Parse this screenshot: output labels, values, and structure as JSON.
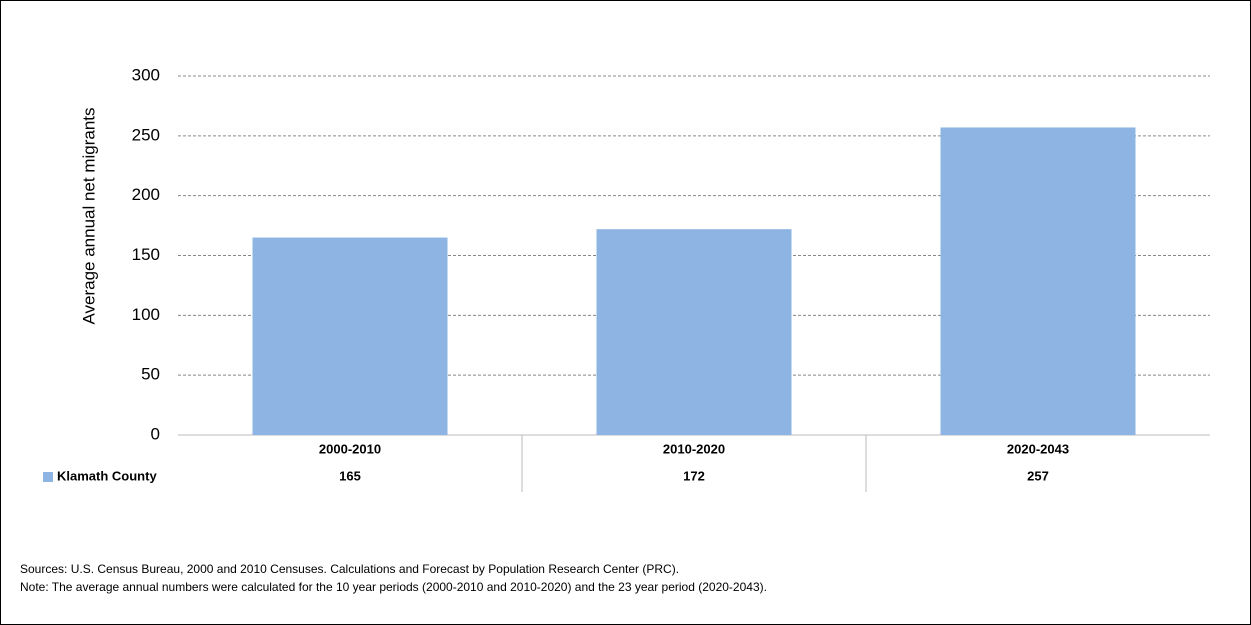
{
  "chart_data": {
    "type": "bar",
    "y_label": "Average annual net migrants",
    "categories": [
      "2000-2010",
      "2010-2020",
      "2020-2043"
    ],
    "series": [
      {
        "name": "Klamath County",
        "color": "#8eb4e3",
        "values": [
          165,
          172,
          257
        ]
      }
    ],
    "ylim": [
      0,
      300
    ],
    "yticks": [
      0,
      50,
      100,
      150,
      200,
      250,
      300
    ],
    "grid": true,
    "source": "Sources: U.S. Census Bureau, 2000 and 2010 Censuses. Calculations and Forecast by Population Research Center (PRC).",
    "note": "Note: The average annual numbers were calculated for the 10 year periods (2000-2010 and 2010-2020) and the 23 year period (2020-2043)."
  }
}
